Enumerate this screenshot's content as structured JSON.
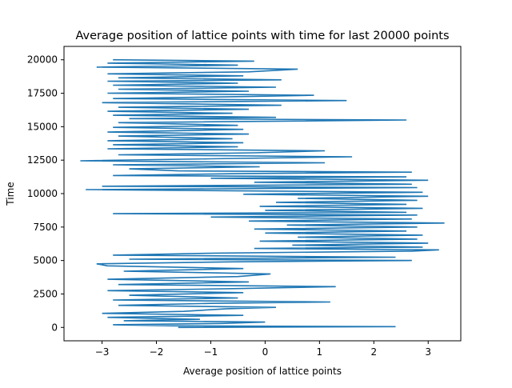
{
  "chart_data": {
    "type": "line",
    "title": "Average position of lattice points with time for last 20000 points",
    "xlabel": "Average position of lattice points",
    "ylabel": "Time",
    "xlim": [
      -3.7,
      3.6
    ],
    "ylim": [
      -1000,
      21000
    ],
    "grid": false,
    "legend": "none",
    "x_ticks": [
      {
        "value": -3,
        "label": "−3"
      },
      {
        "value": -2,
        "label": "−2"
      },
      {
        "value": -1,
        "label": "−1"
      },
      {
        "value": 0,
        "label": "0"
      },
      {
        "value": 1,
        "label": "1"
      },
      {
        "value": 2,
        "label": "2"
      },
      {
        "value": 3,
        "label": "3"
      }
    ],
    "y_ticks": [
      {
        "value": 0,
        "label": "0"
      },
      {
        "value": 2500,
        "label": "2500"
      },
      {
        "value": 5000,
        "label": "5000"
      },
      {
        "value": 7500,
        "label": "7500"
      },
      {
        "value": 10000,
        "label": "10000"
      },
      {
        "value": 12500,
        "label": "12500"
      },
      {
        "value": 15000,
        "label": "15000"
      },
      {
        "value": 17500,
        "label": "17500"
      },
      {
        "value": 20000,
        "label": "20000"
      }
    ],
    "color": "#1f77b4",
    "series": [
      {
        "name": "",
        "points": [
          [
            -1.6,
            0
          ],
          [
            -0.3,
            20
          ],
          [
            2.4,
            60
          ],
          [
            -1.7,
            120
          ],
          [
            -2.8,
            200
          ],
          [
            -0.8,
            300
          ],
          [
            0.0,
            400
          ],
          [
            -2.6,
            500
          ],
          [
            -1.2,
            600
          ],
          [
            -2.9,
            750
          ],
          [
            -0.4,
            900
          ],
          [
            -3.0,
            1050
          ],
          [
            -1.5,
            1200
          ],
          [
            -0.7,
            1400
          ],
          [
            0.2,
            1500
          ],
          [
            -2.7,
            1650
          ],
          [
            -1.0,
            1800
          ],
          [
            1.2,
            1900
          ],
          [
            -2.8,
            2050
          ],
          [
            -0.5,
            2200
          ],
          [
            -2.5,
            2400
          ],
          [
            -0.4,
            2600
          ],
          [
            -2.9,
            2750
          ],
          [
            -0.6,
            2900
          ],
          [
            1.3,
            3050
          ],
          [
            -2.7,
            3200
          ],
          [
            -0.3,
            3400
          ],
          [
            -2.9,
            3600
          ],
          [
            -0.5,
            3800
          ],
          [
            0.1,
            4000
          ],
          [
            -2.6,
            4200
          ],
          [
            -0.4,
            4400
          ],
          [
            -2.9,
            4600
          ],
          [
            -3.1,
            4750
          ],
          [
            -0.6,
            4900
          ],
          [
            2.7,
            5000
          ],
          [
            -2.5,
            5100
          ],
          [
            2.4,
            5250
          ],
          [
            -2.8,
            5400
          ],
          [
            -0.9,
            5550
          ],
          [
            2.7,
            5700
          ],
          [
            3.2,
            5800
          ],
          [
            -0.2,
            5900
          ],
          [
            2.9,
            6000
          ],
          [
            0.5,
            6150
          ],
          [
            3.0,
            6300
          ],
          [
            -0.1,
            6450
          ],
          [
            2.8,
            6600
          ],
          [
            0.6,
            6750
          ],
          [
            2.9,
            6900
          ],
          [
            0.0,
            7050
          ],
          [
            2.6,
            7200
          ],
          [
            -0.2,
            7350
          ],
          [
            2.8,
            7500
          ],
          [
            0.4,
            7650
          ],
          [
            3.3,
            7800
          ],
          [
            -0.3,
            7950
          ],
          [
            2.7,
            8100
          ],
          [
            -1.0,
            8250
          ],
          [
            2.8,
            8400
          ],
          [
            -2.8,
            8500
          ],
          [
            2.6,
            8600
          ],
          [
            0.0,
            8750
          ],
          [
            2.9,
            8900
          ],
          [
            -0.1,
            9050
          ],
          [
            2.6,
            9200
          ],
          [
            0.2,
            9350
          ],
          [
            2.8,
            9500
          ],
          [
            0.6,
            9650
          ],
          [
            3.0,
            9800
          ],
          [
            -0.4,
            9950
          ],
          [
            2.9,
            10100
          ],
          [
            -3.3,
            10300
          ],
          [
            2.8,
            10450
          ],
          [
            -3.0,
            10550
          ],
          [
            2.7,
            10700
          ],
          [
            -0.2,
            10850
          ],
          [
            3.0,
            11000
          ],
          [
            -1.0,
            11150
          ],
          [
            2.6,
            11250
          ],
          [
            -2.8,
            11350
          ],
          [
            -0.4,
            11500
          ],
          [
            2.7,
            11600
          ],
          [
            -1.6,
            11700
          ],
          [
            -2.5,
            11850
          ],
          [
            -0.1,
            12000
          ],
          [
            -2.8,
            12150
          ],
          [
            1.1,
            12300
          ],
          [
            -3.4,
            12450
          ],
          [
            -1.0,
            12600
          ],
          [
            1.6,
            12750
          ],
          [
            -2.7,
            12900
          ],
          [
            -0.2,
            13050
          ],
          [
            1.1,
            13200
          ],
          [
            -2.9,
            13350
          ],
          [
            -0.5,
            13500
          ],
          [
            -2.8,
            13650
          ],
          [
            -0.4,
            13800
          ],
          [
            -2.9,
            13950
          ],
          [
            -0.6,
            14100
          ],
          [
            -2.7,
            14300
          ],
          [
            -0.3,
            14450
          ],
          [
            -2.9,
            14600
          ],
          [
            -0.4,
            14800
          ],
          [
            -2.8,
            14950
          ],
          [
            -0.5,
            15100
          ],
          [
            -2.7,
            15300
          ],
          [
            2.6,
            15500
          ],
          [
            -2.5,
            15600
          ],
          [
            0.2,
            15700
          ],
          [
            -2.8,
            15850
          ],
          [
            -0.6,
            16000
          ],
          [
            -2.9,
            16150
          ],
          [
            -0.3,
            16300
          ],
          [
            -2.7,
            16450
          ],
          [
            0.3,
            16600
          ],
          [
            -3.0,
            16800
          ],
          [
            1.5,
            16950
          ],
          [
            -2.8,
            17100
          ],
          [
            -0.4,
            17250
          ],
          [
            0.9,
            17350
          ],
          [
            -2.9,
            17500
          ],
          [
            -0.3,
            17650
          ],
          [
            -2.7,
            17800
          ],
          [
            0.2,
            17950
          ],
          [
            -2.8,
            18100
          ],
          [
            -0.5,
            18250
          ],
          [
            -2.9,
            18400
          ],
          [
            0.3,
            18500
          ],
          [
            -2.7,
            18650
          ],
          [
            -0.4,
            18800
          ],
          [
            -2.9,
            18950
          ],
          [
            -0.3,
            19100
          ],
          [
            0.6,
            19300
          ],
          [
            -3.1,
            19450
          ],
          [
            -0.5,
            19600
          ],
          [
            -2.9,
            19750
          ],
          [
            -0.2,
            19900
          ],
          [
            -2.8,
            20000
          ]
        ]
      }
    ]
  }
}
